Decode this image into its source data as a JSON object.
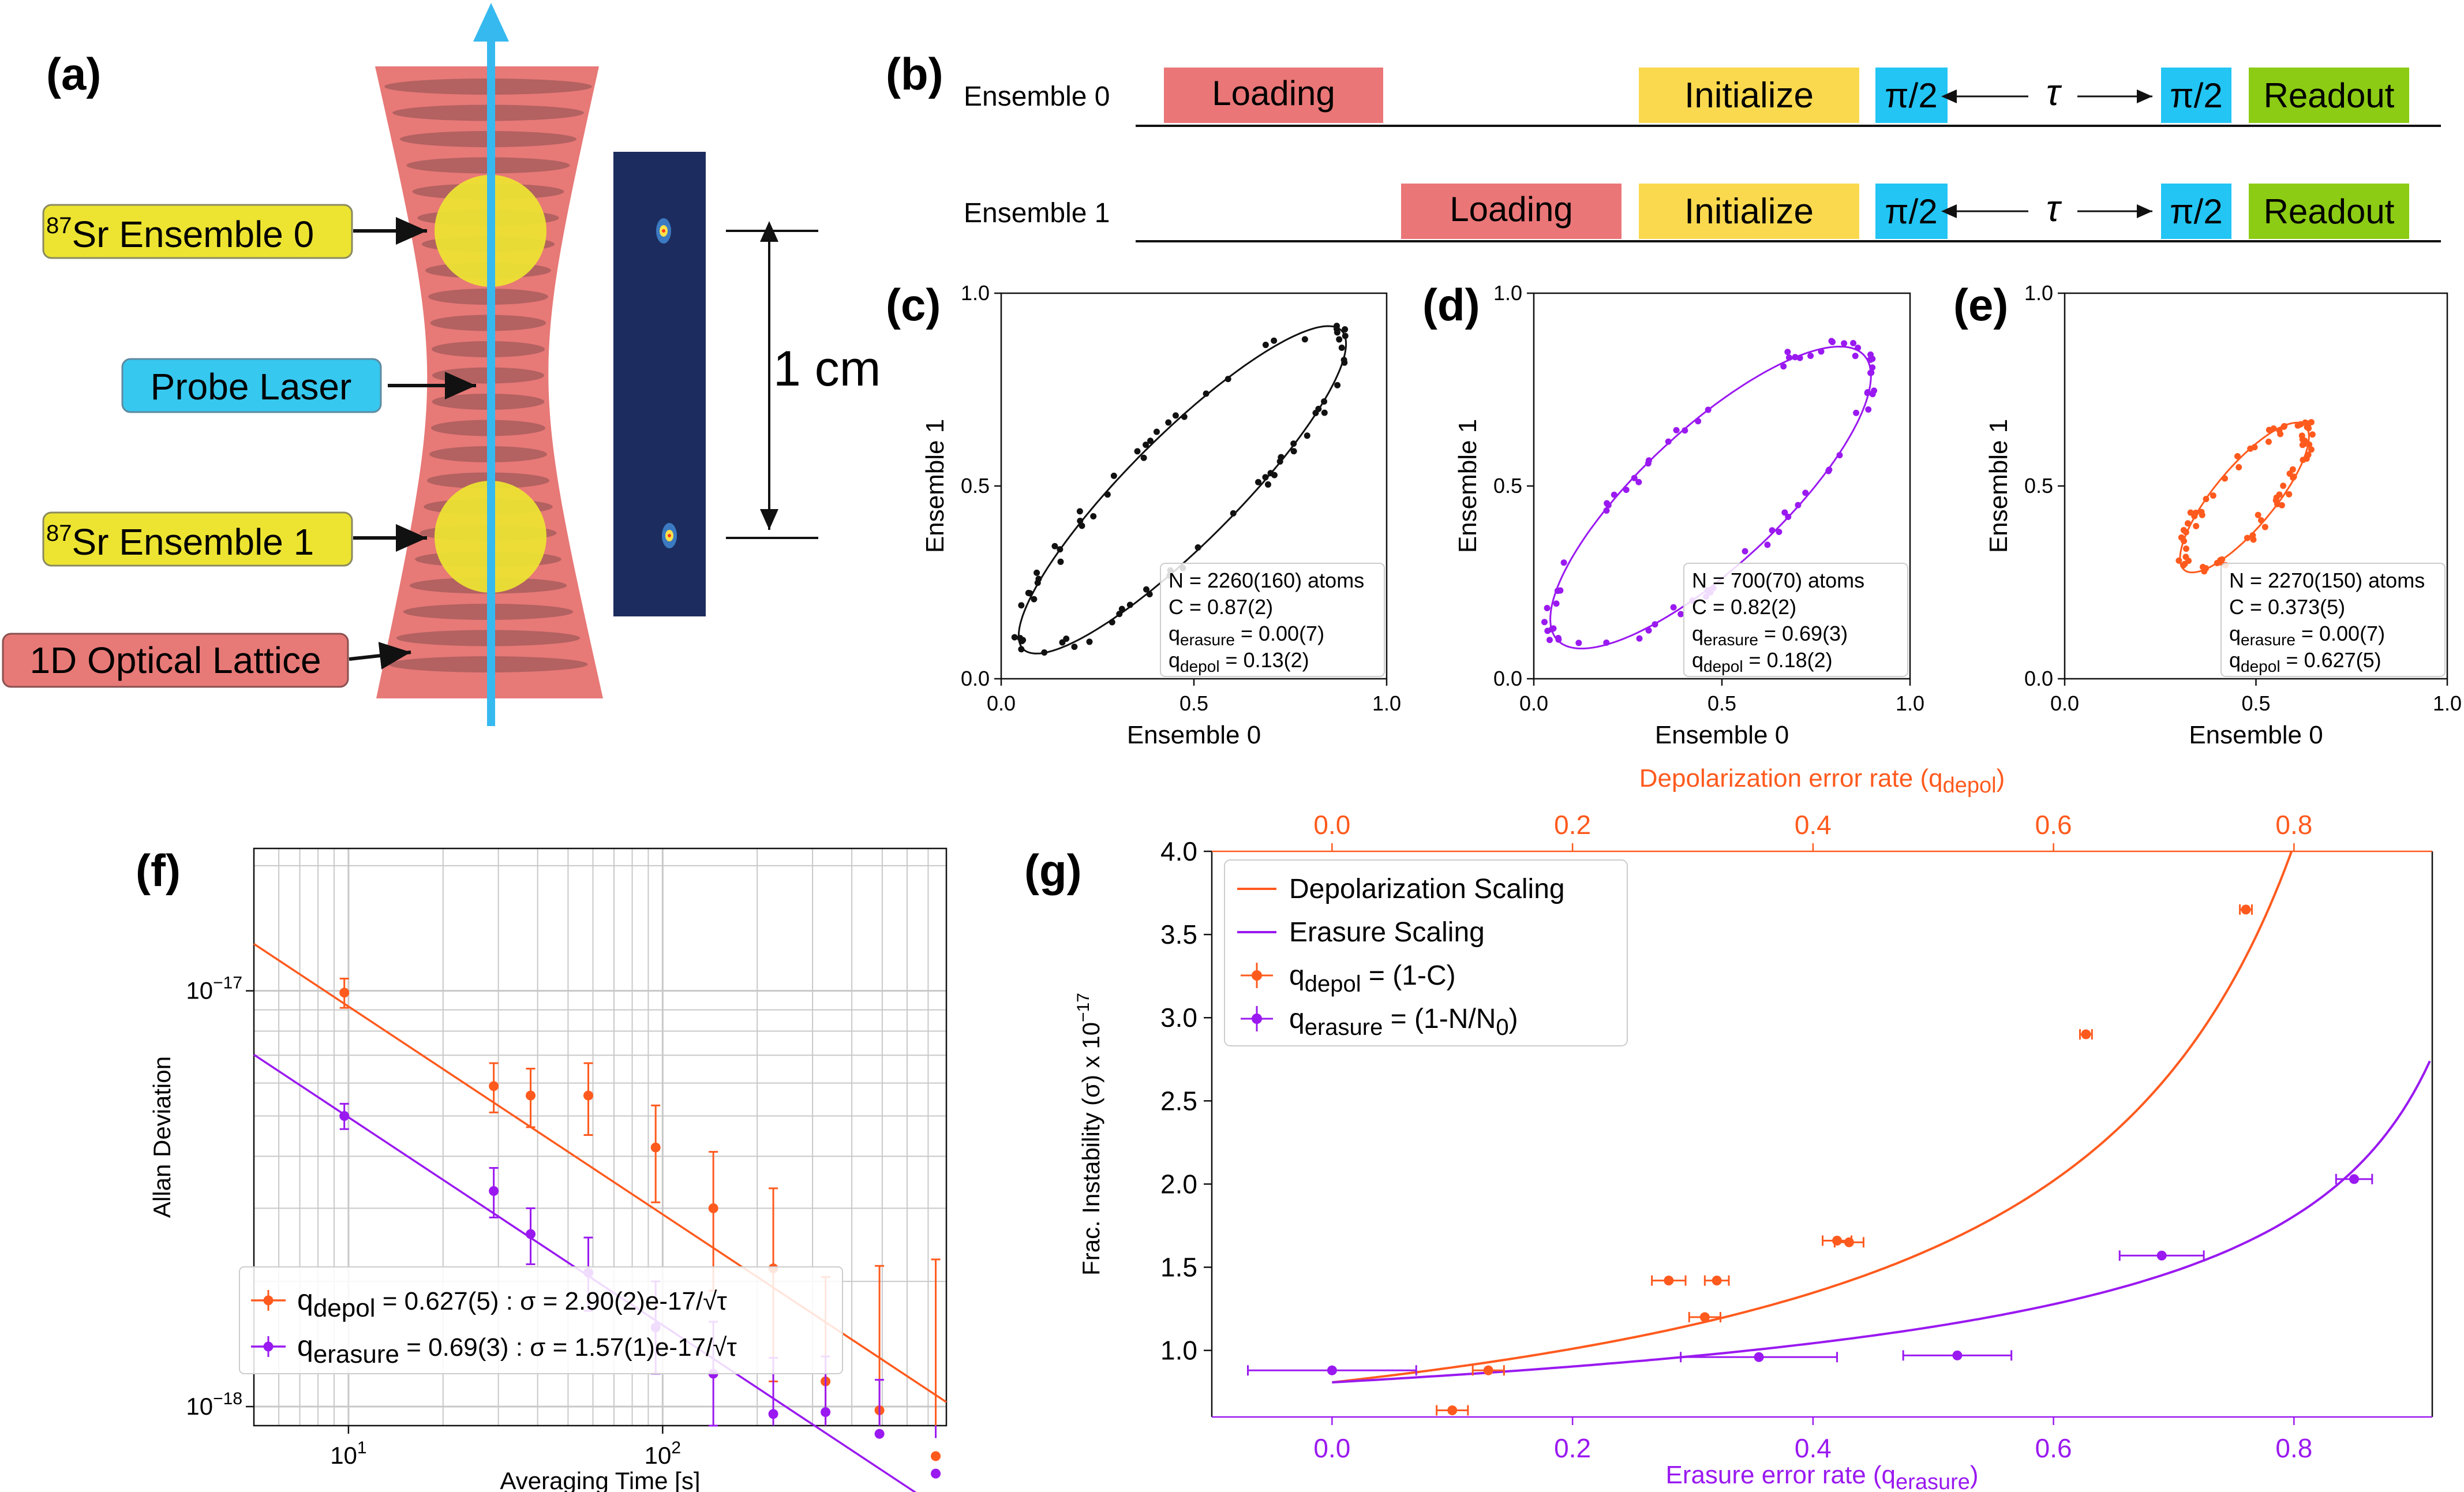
{
  "colors": {
    "orange": "#ff5a1e",
    "purple": "#9a19f0",
    "black": "#111111",
    "load": "#ea7677",
    "init": "#fbd94e",
    "pi": "#22c5f4",
    "readout": "#8ccc14",
    "lattice": "#e77977",
    "lattice_dark": "#a25a5a",
    "ensemble": "#ede431",
    "probe": "#36b9ef"
  },
  "panel_a": {
    "label": "(a)",
    "callout_ens0_sup": "87",
    "callout_ens0": "Sr Ensemble 0",
    "callout_probe": "Probe Laser",
    "callout_ens1_sup": "87",
    "callout_ens1": "Sr Ensemble 1",
    "callout_lattice": "1D Optical Lattice",
    "scale": "1 cm"
  },
  "panel_b": {
    "label": "(b)",
    "rows": [
      {
        "name": "Ensemble 0",
        "loading": "Loading",
        "initialize": "Initialize",
        "pi1": "π/2",
        "tau": "τ",
        "pi2": "π/2",
        "readout": "Readout"
      },
      {
        "name": "Ensemble 1",
        "loading": "Loading",
        "initialize": "Initialize",
        "pi1": "π/2",
        "tau": "τ",
        "pi2": "π/2",
        "readout": "Readout"
      }
    ]
  },
  "chart_data": [
    {
      "id": "c",
      "type": "scatter",
      "label": "(c)",
      "xlabel": "Ensemble 0",
      "ylabel": "Ensemble 1",
      "xlim": [
        0,
        1
      ],
      "ylim": [
        0,
        1
      ],
      "xticks": [
        "0.0",
        "0.5",
        "1.0"
      ],
      "yticks": [
        "0.0",
        "0.5",
        "1.0"
      ],
      "color": "black",
      "ellipse": {
        "cx": 0.47,
        "cy": 0.49,
        "a": 0.584,
        "b": 0.14,
        "angle_deg": 45
      },
      "legend": [
        "N = 2260(160) atoms",
        "C = 0.87(2)",
        "q",
        "q"
      ],
      "legend_sub": [
        "erasure",
        "depol"
      ],
      "legend_val": [
        " = 0.00(7)",
        " = 0.13(2)"
      ]
    },
    {
      "id": "d",
      "type": "scatter",
      "label": "(d)",
      "xlabel": "Ensemble 0",
      "ylabel": "Ensemble 1",
      "xlim": [
        0,
        1
      ],
      "ylim": [
        0,
        1
      ],
      "xticks": [
        "0.0",
        "0.5",
        "1.0"
      ],
      "yticks": [
        "0.0",
        "0.5",
        "1.0"
      ],
      "color": "purple",
      "ellipse": {
        "cx": 0.47,
        "cy": 0.47,
        "a": 0.55,
        "b": 0.18,
        "angle_deg": 42
      },
      "legend": [
        "N = 700(70) atoms",
        "C = 0.82(2)",
        "q",
        "q"
      ],
      "legend_sub": [
        "erasure",
        "depol"
      ],
      "legend_val": [
        " = 0.69(3)",
        " = 0.18(2)"
      ]
    },
    {
      "id": "e",
      "type": "scatter",
      "label": "(e)",
      "xlabel": "Ensemble 0",
      "ylabel": "Ensemble 1",
      "xlim": [
        0,
        1
      ],
      "ylim": [
        0,
        1
      ],
      "xticks": [
        "0.0",
        "0.5",
        "1.0"
      ],
      "yticks": [
        "0.0",
        "0.5",
        "1.0"
      ],
      "color": "orange",
      "ellipse": {
        "cx": 0.47,
        "cy": 0.47,
        "a": 0.245,
        "b": 0.078,
        "angle_deg": 50
      },
      "legend": [
        "N = 2270(150) atoms",
        "C = 0.373(5)",
        "q",
        "q"
      ],
      "legend_sub": [
        "erasure",
        "depol"
      ],
      "legend_val": [
        " = 0.00(7)",
        " = 0.627(5)"
      ]
    },
    {
      "id": "f",
      "type": "line",
      "label": "(f)",
      "xlabel": "Averaging Time [s]",
      "ylabel": "Allan Deviation",
      "xscale": "log",
      "yscale": "log",
      "xlim": [
        5,
        800
      ],
      "ylim": [
        9e-19,
        2.2e-17
      ],
      "xticks": [
        {
          "v": 10,
          "b": "10",
          "e": "1"
        },
        {
          "v": 100,
          "b": "10",
          "e": "2"
        }
      ],
      "yticks": [
        {
          "v": 1e-18,
          "b": "10",
          "e": "−18"
        },
        {
          "v": 1e-17,
          "b": "10",
          "e": "−17"
        }
      ],
      "series": [
        {
          "name": "depol",
          "color": "orange",
          "legend_main": "q",
          "legend_sub": "depol",
          "legend_rest": " = 0.627(5) : σ = 2.90(2)e-17/√τ",
          "fit": {
            "a": 2.9e-17
          },
          "x": [
            9.7,
            29,
            38,
            58,
            95,
            145,
            225,
            330,
            490,
            740
          ],
          "y": [
            9.9e-18,
            5.9e-18,
            5.6e-18,
            5.6e-18,
            4.2e-18,
            3e-18,
            2.15e-18,
            1.15e-18,
            9.8e-19,
            7.6e-19
          ],
          "yerr_lo": [
            8e-19,
            8e-19,
            9e-19,
            1.1e-18,
            1.1e-18,
            1.1e-18,
            1e-18,
            6e-19,
            5.5e-19,
            4.5e-19
          ],
          "yerr_hi": [
            8e-19,
            8e-19,
            9e-19,
            1.1e-18,
            1.1e-18,
            1.1e-18,
            1.2e-18,
            9e-19,
            1.2e-18,
            1.5e-18
          ]
        },
        {
          "name": "erasure",
          "color": "purple",
          "legend_main": "q",
          "legend_sub": "erasure",
          "legend_rest": " = 0.69(3) : σ = 1.57(1)e-17/√τ",
          "fit": {
            "a": 1.57e-17
          },
          "x": [
            9.7,
            29,
            38,
            58,
            95,
            145,
            225,
            330,
            490,
            740
          ],
          "y": [
            5e-18,
            3.3e-18,
            2.6e-18,
            2.1e-18,
            1.55e-18,
            1.2e-18,
            9.6e-19,
            9.7e-19,
            8.6e-19,
            6.9e-19
          ],
          "yerr_lo": [
            3.5e-19,
            4.5e-19,
            4e-19,
            4e-19,
            3.5e-19,
            3e-19,
            2.5e-19,
            3e-19,
            2.5e-19,
            1.5e-19
          ],
          "yerr_hi": [
            3.5e-19,
            4.5e-19,
            4e-19,
            4.5e-19,
            4.5e-19,
            4e-19,
            3.5e-19,
            3.5e-19,
            3e-19,
            1.5e-19
          ]
        }
      ]
    },
    {
      "id": "g",
      "type": "scatter",
      "label": "(g)",
      "xlabel_main": "Erasure error rate  (q",
      "xlabel_sub": "erasure",
      "xlabel_end": ")",
      "x2label_main": "Depolarization error rate  (q",
      "x2label_sub": "depol",
      "x2label_end": ")",
      "ylabel": "Frac. Instability (σ) x 10",
      "ylabel_sup": "−17",
      "xlim": [
        -0.1,
        0.915
      ],
      "ylim": [
        0.6,
        4.0
      ],
      "xticks": [
        0.0,
        0.2,
        0.4,
        0.6,
        0.8
      ],
      "xtick_labels": [
        "0.0",
        "0.2",
        "0.4",
        "0.6",
        "0.8"
      ],
      "yticks": [
        1.0,
        1.5,
        2.0,
        2.5,
        3.0,
        3.5,
        4.0
      ],
      "ytick_labels": [
        "1.0",
        "1.5",
        "2.0",
        "2.5",
        "3.0",
        "3.5",
        "4.0"
      ],
      "legend": [
        {
          "main": "Depolarization Scaling",
          "color": "orange",
          "kind": "line"
        },
        {
          "main": "Erasure Scaling",
          "color": "purple",
          "kind": "line"
        },
        {
          "main": "q",
          "sub": "depol",
          "rest": " = (1-C)",
          "color": "orange",
          "kind": "err"
        },
        {
          "main": "q",
          "sub": "erasure",
          "rest": " = (1-N/N",
          "sub2": "0",
          "end": ")",
          "color": "purple",
          "kind": "err"
        }
      ],
      "curves": [
        {
          "name": "Depolarization Scaling",
          "color": "orange",
          "base": 0.808,
          "power": 1,
          "xmax": 0.8
        },
        {
          "name": "Erasure Scaling",
          "color": "purple",
          "base": 0.808,
          "power": 0.5,
          "xmax": 0.913
        }
      ],
      "series": [
        {
          "name": "depol",
          "color": "orange",
          "x": [
            0.1,
            0.13,
            0.28,
            0.32,
            0.31,
            0.42,
            0.43,
            0.627,
            0.76
          ],
          "y": [
            0.64,
            0.88,
            1.42,
            1.42,
            1.2,
            1.66,
            1.65,
            2.9,
            3.65
          ],
          "xerr": [
            0.013,
            0.013,
            0.014,
            0.01,
            0.013,
            0.012,
            0.012,
            0.005,
            0.005
          ]
        },
        {
          "name": "erasure",
          "color": "purple",
          "x": [
            0.0,
            0.355,
            0.52,
            0.69,
            0.85
          ],
          "y": [
            0.88,
            0.96,
            0.97,
            1.57,
            2.03
          ],
          "xerr": [
            0.07,
            0.065,
            0.045,
            0.035,
            0.015
          ]
        }
      ]
    }
  ]
}
